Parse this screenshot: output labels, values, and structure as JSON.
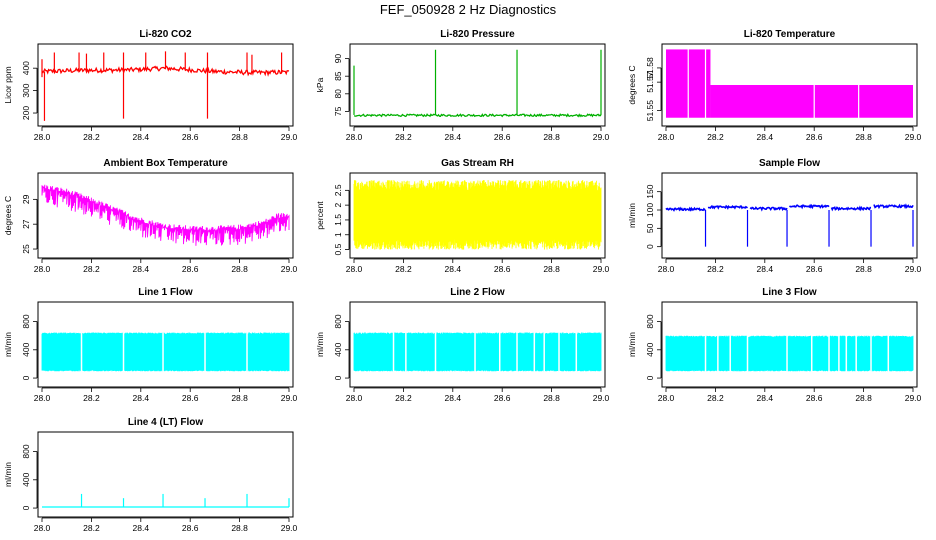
{
  "page_title": "FEF_050928  2 Hz Diagnostics",
  "chart_data": [
    {
      "id": "co2",
      "type": "line",
      "title": "Li-820 CO2",
      "ylabel": "Licor ppm",
      "color": "#ff0000",
      "xlim": [
        28.0,
        29.0
      ],
      "ylim": [
        160,
        490
      ],
      "xticks": [
        "28.0",
        "28.2",
        "28.4",
        "28.6",
        "28.8",
        "29.0"
      ],
      "yticks": [
        200,
        300,
        400
      ],
      "trend": {
        "x": [
          28.0,
          28.15,
          28.35,
          28.5,
          28.7,
          28.85,
          29.0
        ],
        "y": [
          385,
          390,
          392,
          400,
          385,
          380,
          382
        ]
      },
      "noise": 10,
      "spikes": [
        {
          "x": 28.0,
          "lo": 360,
          "hi": 440
        },
        {
          "x": 28.01,
          "lo": 165,
          "hi": 385
        },
        {
          "x": 28.05,
          "lo": 385,
          "hi": 470
        },
        {
          "x": 28.15,
          "lo": 385,
          "hi": 470
        },
        {
          "x": 28.18,
          "lo": 385,
          "hi": 465
        },
        {
          "x": 28.25,
          "lo": 390,
          "hi": 470
        },
        {
          "x": 28.33,
          "lo": 175,
          "hi": 470
        },
        {
          "x": 28.42,
          "lo": 395,
          "hi": 470
        },
        {
          "x": 28.5,
          "lo": 395,
          "hi": 475
        },
        {
          "x": 28.58,
          "lo": 390,
          "hi": 470
        },
        {
          "x": 28.67,
          "lo": 175,
          "hi": 470
        },
        {
          "x": 28.83,
          "lo": 385,
          "hi": 470
        },
        {
          "x": 28.85,
          "lo": 380,
          "hi": 460
        },
        {
          "x": 28.97,
          "lo": 380,
          "hi": 470
        }
      ]
    },
    {
      "id": "pressure",
      "type": "line",
      "title": "Li-820 Pressure",
      "ylabel": "kPa",
      "color": "#00b000",
      "xlim": [
        28.0,
        29.0
      ],
      "ylim": [
        72,
        93
      ],
      "xticks": [
        "28.0",
        "28.2",
        "28.4",
        "28.6",
        "28.8",
        "29.0"
      ],
      "yticks": [
        75,
        80,
        85,
        90
      ],
      "trend": {
        "x": [
          28.0,
          29.0
        ],
        "y": [
          73.9,
          73.9
        ]
      },
      "noise": 0.3,
      "spikes": [
        {
          "x": 28.0,
          "lo": 74,
          "hi": 88
        },
        {
          "x": 28.33,
          "lo": 74,
          "hi": 92.5
        },
        {
          "x": 28.66,
          "lo": 74,
          "hi": 92.5
        },
        {
          "x": 29.0,
          "lo": 74,
          "hi": 92.5
        }
      ]
    },
    {
      "id": "licor-temp",
      "type": "area",
      "title": "Li-820 Temperature",
      "ylabel": "degrees C",
      "color": "#ff00ff",
      "xlim": [
        28.0,
        29.0
      ],
      "ylim": [
        51.542,
        51.594
      ],
      "xticks": [
        "28.0",
        "28.2",
        "28.4",
        "28.6",
        "28.8",
        "29.0"
      ],
      "yticks": [
        51.55,
        51.57,
        51.58
      ],
      "bands": [
        {
          "x": [
            28.0,
            28.09
          ],
          "lo": 51.545,
          "hi": 51.593
        },
        {
          "x": [
            28.09,
            28.16
          ],
          "lo": 51.545,
          "hi": 51.593
        },
        {
          "x": [
            28.16,
            28.18
          ],
          "lo": 51.545,
          "hi": 51.593
        },
        {
          "x": [
            28.18,
            29.0
          ],
          "lo": 51.545,
          "hi": 51.568
        }
      ],
      "gaps": [
        28.09,
        28.16,
        28.6,
        28.78
      ]
    },
    {
      "id": "box-temp",
      "type": "line",
      "title": "Ambient Box Temperature",
      "ylabel": "degrees C",
      "color": "#ff00ff",
      "xlim": [
        28.0,
        29.0
      ],
      "ylim": [
        24.6,
        30.8
      ],
      "xticks": [
        "28.0",
        "28.2",
        "28.4",
        "28.6",
        "28.8",
        "29.0"
      ],
      "yticks": [
        25,
        27,
        29
      ],
      "trend": {
        "x": [
          28.0,
          28.1,
          28.2,
          28.3,
          28.4,
          28.5,
          28.6,
          28.7,
          28.8,
          28.9,
          28.95,
          29.0
        ],
        "y": [
          30.0,
          29.6,
          28.9,
          28.1,
          27.3,
          26.8,
          26.6,
          26.6,
          26.7,
          27.1,
          27.6,
          27.7
        ]
      },
      "noise": 0.4,
      "downspikes": 1.4
    },
    {
      "id": "rh",
      "type": "area",
      "title": "Gas Stream RH",
      "ylabel": "percent",
      "color": "#ffff00",
      "xlim": [
        28.0,
        29.0
      ],
      "ylim": [
        0.35,
        2.95
      ],
      "xticks": [
        "28.0",
        "28.2",
        "28.4",
        "28.6",
        "28.8",
        "29.0"
      ],
      "yticks": [
        0.5,
        1.0,
        1.5,
        2.0,
        2.5
      ],
      "range": [
        0.5,
        2.85
      ]
    },
    {
      "id": "sample-flow",
      "type": "line",
      "title": "Sample Flow",
      "ylabel": "ml/min",
      "color": "#0000ff",
      "xlim": [
        28.0,
        29.0
      ],
      "ylim": [
        -20,
        190
      ],
      "xticks": [
        "28.0",
        "28.2",
        "28.4",
        "28.6",
        "28.8",
        "29.0"
      ],
      "yticks": [
        0,
        50,
        100,
        150
      ],
      "steps": [
        {
          "x": [
            28.0,
            28.16
          ],
          "y": 102
        },
        {
          "x": [
            28.17,
            28.33
          ],
          "y": 108
        },
        {
          "x": [
            28.34,
            28.49
          ],
          "y": 104
        },
        {
          "x": [
            28.5,
            28.66
          ],
          "y": 110
        },
        {
          "x": [
            28.67,
            28.83
          ],
          "y": 104
        },
        {
          "x": [
            28.84,
            29.0
          ],
          "y": 110
        }
      ],
      "dips": [
        28.16,
        28.33,
        28.49,
        28.66,
        28.83,
        29.0
      ]
    },
    {
      "id": "line1",
      "type": "area",
      "title": "Line 1 Flow",
      "ylabel": "ml/min",
      "color": "#00ffff",
      "xlim": [
        28.0,
        29.0
      ],
      "ylim": [
        -70,
        1020
      ],
      "xticks": [
        "28.0",
        "28.2",
        "28.4",
        "28.6",
        "28.8",
        "29.0"
      ],
      "yticks": [
        0,
        400,
        800
      ],
      "range": [
        95,
        645
      ],
      "gaps": [
        28.16,
        28.33,
        28.49,
        28.66,
        28.83
      ]
    },
    {
      "id": "line2",
      "type": "area",
      "title": "Line 2 Flow",
      "ylabel": "ml/min",
      "color": "#00ffff",
      "xlim": [
        28.0,
        29.0
      ],
      "ylim": [
        -70,
        1020
      ],
      "xticks": [
        "28.0",
        "28.2",
        "28.4",
        "28.6",
        "28.8",
        "29.0"
      ],
      "yticks": [
        0,
        400,
        800
      ],
      "range": [
        95,
        645
      ],
      "gaps": [
        28.16,
        28.21,
        28.33,
        28.49,
        28.59,
        28.66,
        28.73,
        28.77,
        28.83,
        28.9
      ]
    },
    {
      "id": "line3",
      "type": "area",
      "title": "Line 3 Flow",
      "ylabel": "ml/min",
      "color": "#00ffff",
      "xlim": [
        28.0,
        29.0
      ],
      "ylim": [
        -70,
        1020
      ],
      "xticks": [
        "28.0",
        "28.2",
        "28.4",
        "28.6",
        "28.8",
        "29.0"
      ],
      "yticks": [
        0,
        400,
        800
      ],
      "range": [
        95,
        600
      ],
      "gaps": [
        28.16,
        28.21,
        28.26,
        28.33,
        28.49,
        28.59,
        28.66,
        28.7,
        28.73,
        28.77,
        28.83,
        28.9
      ]
    },
    {
      "id": "line4",
      "type": "line",
      "title": "Line 4 (LT) Flow",
      "ylabel": "ml/min",
      "color": "#00ffff",
      "xlim": [
        28.0,
        29.0
      ],
      "ylim": [
        -70,
        1020
      ],
      "xticks": [
        "28.0",
        "28.2",
        "28.4",
        "28.6",
        "28.8",
        "29.0"
      ],
      "yticks": [
        0,
        400,
        800
      ],
      "trend": {
        "x": [
          28.0,
          29.0
        ],
        "y": [
          15,
          15
        ]
      },
      "noise": 0,
      "spikes": [
        {
          "x": 28.16,
          "lo": 15,
          "hi": 200
        },
        {
          "x": 28.33,
          "lo": 15,
          "hi": 140
        },
        {
          "x": 28.49,
          "lo": 15,
          "hi": 200
        },
        {
          "x": 28.66,
          "lo": 15,
          "hi": 140
        },
        {
          "x": 28.83,
          "lo": 15,
          "hi": 200
        },
        {
          "x": 29.0,
          "lo": 15,
          "hi": 140
        }
      ]
    }
  ]
}
